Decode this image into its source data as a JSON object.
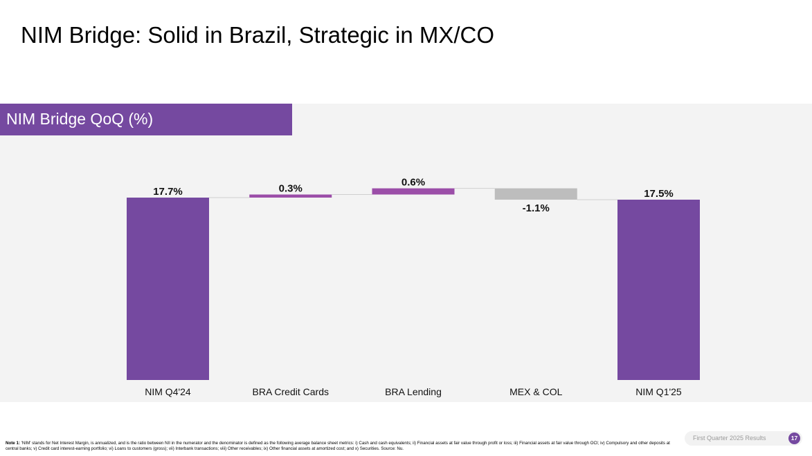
{
  "slide": {
    "title": "NIM Bridge: Solid in Brazil, Strategic in MX/CO",
    "panel_header": "NIM Bridge QoQ (%)",
    "footnote_lead": "Note 1:",
    "footnote_body": " 'NIM' stands for Net Interest Margin, is annualized, and is the ratio between NII in the numerator and the denominator is defined as the following average balance sheet metrics: i) Cash and cash equivalents; ii) Financial assets at fair value through profit or loss; iii) Financial assets at fair value through OCI; iv) Compulsory and other deposits at central banks; v) Credit card interest-earning portfolio; vi) Loans to customers (gross); vii) Interbank transactions; viii) Other receivables; ix) Other financial assets at amortized cost; and x) Securities. Source: Nu.",
    "footer_label": "First Quarter 2025 Results",
    "page_number": "17"
  },
  "colors": {
    "accent": "#7549a0",
    "positive": "#9b4ea8",
    "negative": "#bdbdbd",
    "panel_bg": "#f3f3f3"
  },
  "chart_data": {
    "type": "waterfall",
    "title": "NIM Bridge QoQ (%)",
    "categories": [
      "NIM Q4'24",
      "BRA Credit Cards",
      "BRA Lending",
      "MEX & COL",
      "NIM Q1'25"
    ],
    "values": [
      17.7,
      0.3,
      0.6,
      -1.1,
      17.5
    ],
    "labels": [
      "17.7%",
      "0.3%",
      "0.6%",
      "-1.1%",
      "17.5%"
    ],
    "kinds": [
      "total",
      "delta",
      "delta",
      "delta",
      "total"
    ],
    "yaxis_visible": false,
    "grid": false,
    "legend": "none"
  }
}
